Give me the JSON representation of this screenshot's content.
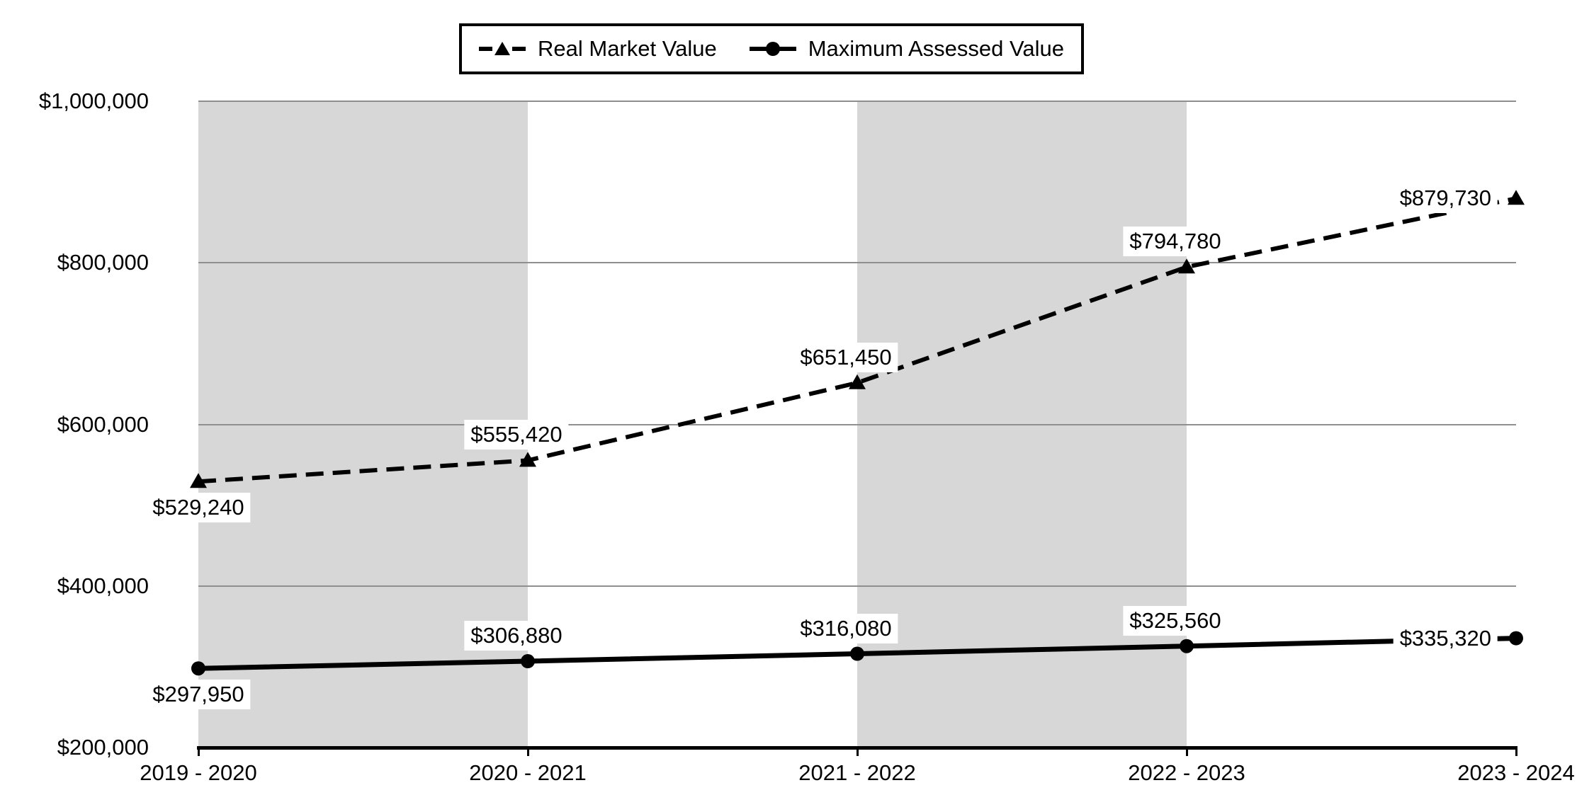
{
  "legend": {
    "items": [
      {
        "label": "Real Market Value",
        "marker": "dashed-line-triangle"
      },
      {
        "label": "Maximum Assessed Value",
        "marker": "solid-line-circle"
      }
    ]
  },
  "chart_data": {
    "type": "line",
    "title": "",
    "xlabel": "",
    "ylabel": "",
    "categories": [
      "2019 - 2020",
      "2020 - 2021",
      "2021 - 2022",
      "2022 - 2023",
      "2023 - 2024"
    ],
    "series": [
      {
        "name": "Real Market Value",
        "line_style": "dashed",
        "marker": "triangle",
        "color": "#000000",
        "values": [
          529240,
          555420,
          651450,
          794780,
          879730
        ],
        "labels": [
          "$529,240",
          "$555,420",
          "$651,450",
          "$794,780",
          "$879,730"
        ]
      },
      {
        "name": "Maximum Assessed Value",
        "line_style": "solid",
        "marker": "circle",
        "color": "#000000",
        "values": [
          297950,
          306880,
          316080,
          325560,
          335320
        ],
        "labels": [
          "$297,950",
          "$306,880",
          "$316,080",
          "$325,560",
          "$335,320"
        ]
      }
    ],
    "ylim": [
      200000,
      1000000
    ],
    "ytick_step": 200000,
    "ytick_labels": [
      "$200,000",
      "$400,000",
      "$600,000",
      "$800,000",
      "$1,000,000"
    ],
    "grid": true,
    "legend_position": "top-center",
    "plot_bands": {
      "description": "alternating gray vertical bands between category points",
      "pairs": [
        [
          0,
          1
        ],
        [
          2,
          3
        ]
      ]
    },
    "colors": {
      "series": "#000000",
      "band": "#d7d7d7",
      "gridline": "#8f8f8f",
      "axis": "#000000",
      "background": "#ffffff",
      "data_label_bg": "#ffffff",
      "text": "#000000"
    }
  },
  "layout_hints": {
    "label_placements": [
      "below",
      "above",
      "above",
      "above",
      "left"
    ]
  }
}
